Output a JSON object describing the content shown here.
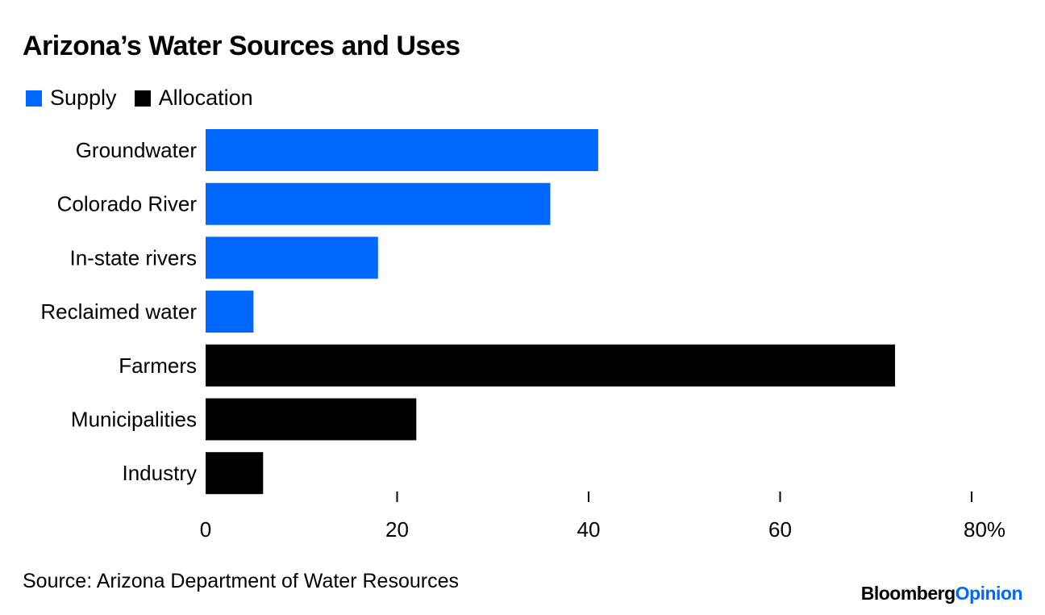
{
  "colors": {
    "supply": "#0068ff",
    "allocation": "#000000"
  },
  "brand": {
    "part1": "Bloomberg",
    "part2": "Opinion"
  },
  "source": "Source: Arizona Department of Water Resources",
  "chart_data": {
    "type": "bar",
    "orientation": "horizontal",
    "title": "Arizona’s Water Sources and Uses",
    "legend": [
      {
        "name": "Supply",
        "color": "#0068ff"
      },
      {
        "name": "Allocation",
        "color": "#000000"
      }
    ],
    "legend_position": "top-left",
    "categories": [
      "Groundwater",
      "Colorado River",
      "In-state rivers",
      "Reclaimed water",
      "Farmers",
      "Municipalities",
      "Industry"
    ],
    "values": [
      41,
      36,
      18,
      5,
      72,
      22,
      6
    ],
    "groups": [
      "Supply",
      "Supply",
      "Supply",
      "Supply",
      "Allocation",
      "Allocation",
      "Allocation"
    ],
    "xlim": [
      0,
      80
    ],
    "xticks": [
      0,
      20,
      40,
      60,
      80
    ],
    "xtick_labels": [
      "0",
      "20",
      "40",
      "60",
      "80%"
    ],
    "xlabel": "",
    "ylabel": "",
    "grid": false
  }
}
